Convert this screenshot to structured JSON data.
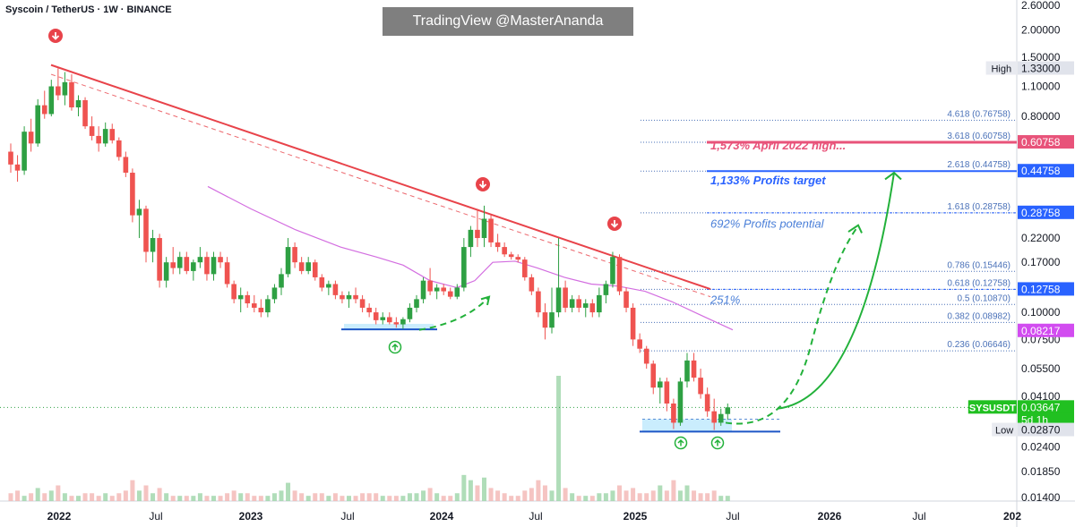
{
  "header": {
    "title": "Syscoin / TetherUS · 1W · BINANCE"
  },
  "watermark": "TradingView @MasterAnanda",
  "colors": {
    "up": "#2ea043",
    "down": "#ef5350",
    "trend": "#e8434a",
    "sma": "#d36ee0",
    "fib_line": "#4a71b8",
    "label_blue": "#2962ff",
    "label_pink": "#e8537a",
    "label_magenta": "#d24cf0",
    "label_green": "#21c021",
    "support": "#1d56c6",
    "projection": "#22b13a"
  },
  "chart_data": {
    "type": "candlestick",
    "title": "Syscoin / TetherUS · 1W · BINANCE",
    "y_scale": "log",
    "ylim": [
      0.0135,
      2.75
    ],
    "x_ticks": [
      "2022",
      "Jul",
      "2023",
      "Jul",
      "2024",
      "Jul",
      "2025",
      "Jul",
      "2026",
      "Jul",
      "202"
    ],
    "y_ticks": [
      "2.60000",
      "2.00000",
      "1.50000",
      "1.10000",
      "0.80000",
      "0.22000",
      "0.17000",
      "0.10000",
      "0.07500",
      "0.05500",
      "0.04100",
      "0.02400",
      "0.01850",
      "0.01400"
    ],
    "price_labels": [
      {
        "text": "High",
        "value": "1.33000",
        "y": 1.33,
        "style": "plain"
      },
      {
        "text": "",
        "value": "0.60758",
        "y": 0.60758,
        "style": "pink"
      },
      {
        "text": "",
        "value": "0.44758",
        "y": 0.44758,
        "style": "blue"
      },
      {
        "text": "",
        "value": "0.28758",
        "y": 0.28758,
        "style": "blue"
      },
      {
        "text": "",
        "value": "0.12758",
        "y": 0.12758,
        "style": "blue"
      },
      {
        "text": "",
        "value": "0.08217",
        "y": 0.08217,
        "style": "magenta"
      },
      {
        "text": "SYSUSDT",
        "value": "0.03647",
        "y": 0.03647,
        "style": "green"
      },
      {
        "text": "",
        "value": "5d 1h",
        "y": 0.0332,
        "style": "green-sub"
      },
      {
        "text": "Low",
        "value": "0.02870",
        "y": 0.0287,
        "style": "plain"
      }
    ],
    "fib_levels": [
      {
        "label": "4.618 (0.76758)",
        "y": 0.76758
      },
      {
        "label": "3.618 (0.60758)",
        "y": 0.60758
      },
      {
        "label": "2.618 (0.44758)",
        "y": 0.44758
      },
      {
        "label": "1.618 (0.28758)",
        "y": 0.28758
      },
      {
        "label": "0.786 (0.15446)",
        "y": 0.15446
      },
      {
        "label": "0.618 (0.12758)",
        "y": 0.12758
      },
      {
        "label": "0.5 (0.10870)",
        "y": 0.1087
      },
      {
        "label": "0.382 (0.08982)",
        "y": 0.08982
      },
      {
        "label": "0.236 (0.06646)",
        "y": 0.06646
      }
    ],
    "annotations": [
      {
        "text": "1,573% April 2022 high...",
        "y": 0.585,
        "color": "pink"
      },
      {
        "text": "1,133% Profits target",
        "y": 0.405,
        "color": "blue"
      },
      {
        "text": "692% Profits potential",
        "y": 0.255,
        "color": "lightblue"
      },
      {
        "text": "251%",
        "y": 0.114,
        "color": "lightblue"
      }
    ],
    "candles": [
      [
        0.55,
        0.6,
        0.44,
        0.48
      ],
      [
        0.48,
        0.53,
        0.4,
        0.45
      ],
      [
        0.45,
        0.72,
        0.43,
        0.68
      ],
      [
        0.68,
        0.78,
        0.55,
        0.6
      ],
      [
        0.6,
        0.96,
        0.58,
        0.9
      ],
      [
        0.9,
        1.05,
        0.78,
        0.82
      ],
      [
        0.82,
        1.18,
        0.8,
        1.1
      ],
      [
        1.1,
        1.33,
        0.95,
        1.0
      ],
      [
        1.0,
        1.28,
        0.9,
        1.15
      ],
      [
        1.15,
        1.25,
        0.85,
        0.88
      ],
      [
        0.88,
        1.0,
        0.8,
        0.95
      ],
      [
        0.95,
        0.98,
        0.7,
        0.72
      ],
      [
        0.72,
        0.8,
        0.62,
        0.65
      ],
      [
        0.65,
        0.72,
        0.55,
        0.6
      ],
      [
        0.6,
        0.75,
        0.58,
        0.7
      ],
      [
        0.7,
        0.74,
        0.6,
        0.62
      ],
      [
        0.62,
        0.64,
        0.5,
        0.52
      ],
      [
        0.52,
        0.55,
        0.42,
        0.44
      ],
      [
        0.44,
        0.46,
        0.26,
        0.28
      ],
      [
        0.28,
        0.33,
        0.22,
        0.3
      ],
      [
        0.3,
        0.31,
        0.17,
        0.19
      ],
      [
        0.19,
        0.24,
        0.17,
        0.22
      ],
      [
        0.22,
        0.23,
        0.13,
        0.14
      ],
      [
        0.14,
        0.18,
        0.13,
        0.17
      ],
      [
        0.17,
        0.2,
        0.15,
        0.16
      ],
      [
        0.16,
        0.19,
        0.15,
        0.18
      ],
      [
        0.18,
        0.19,
        0.15,
        0.155
      ],
      [
        0.155,
        0.175,
        0.14,
        0.17
      ],
      [
        0.17,
        0.2,
        0.16,
        0.18
      ],
      [
        0.18,
        0.19,
        0.14,
        0.15
      ],
      [
        0.15,
        0.19,
        0.14,
        0.18
      ],
      [
        0.18,
        0.19,
        0.16,
        0.17
      ],
      [
        0.17,
        0.18,
        0.13,
        0.135
      ],
      [
        0.135,
        0.14,
        0.11,
        0.115
      ],
      [
        0.115,
        0.13,
        0.1,
        0.12
      ],
      [
        0.12,
        0.125,
        0.105,
        0.11
      ],
      [
        0.11,
        0.12,
        0.1,
        0.105
      ],
      [
        0.105,
        0.115,
        0.095,
        0.1
      ],
      [
        0.1,
        0.12,
        0.095,
        0.115
      ],
      [
        0.115,
        0.135,
        0.11,
        0.13
      ],
      [
        0.13,
        0.16,
        0.12,
        0.15
      ],
      [
        0.15,
        0.22,
        0.145,
        0.2
      ],
      [
        0.2,
        0.21,
        0.16,
        0.17
      ],
      [
        0.17,
        0.18,
        0.15,
        0.155
      ],
      [
        0.155,
        0.18,
        0.15,
        0.17
      ],
      [
        0.17,
        0.175,
        0.14,
        0.145
      ],
      [
        0.145,
        0.15,
        0.125,
        0.13
      ],
      [
        0.13,
        0.14,
        0.12,
        0.135
      ],
      [
        0.135,
        0.14,
        0.115,
        0.12
      ],
      [
        0.12,
        0.125,
        0.11,
        0.115
      ],
      [
        0.115,
        0.125,
        0.105,
        0.12
      ],
      [
        0.12,
        0.13,
        0.11,
        0.115
      ],
      [
        0.115,
        0.12,
        0.1,
        0.105
      ],
      [
        0.105,
        0.11,
        0.095,
        0.1
      ],
      [
        0.1,
        0.105,
        0.088,
        0.092
      ],
      [
        0.092,
        0.1,
        0.088,
        0.095
      ],
      [
        0.095,
        0.1,
        0.088,
        0.09
      ],
      [
        0.09,
        0.095,
        0.085,
        0.088
      ],
      [
        0.088,
        0.095,
        0.084,
        0.093
      ],
      [
        0.093,
        0.11,
        0.09,
        0.105
      ],
      [
        0.105,
        0.12,
        0.1,
        0.115
      ],
      [
        0.115,
        0.145,
        0.11,
        0.14
      ],
      [
        0.14,
        0.16,
        0.12,
        0.125
      ],
      [
        0.125,
        0.135,
        0.115,
        0.13
      ],
      [
        0.13,
        0.135,
        0.12,
        0.125
      ],
      [
        0.125,
        0.13,
        0.115,
        0.118
      ],
      [
        0.118,
        0.135,
        0.115,
        0.13
      ],
      [
        0.13,
        0.22,
        0.125,
        0.2
      ],
      [
        0.2,
        0.25,
        0.18,
        0.24
      ],
      [
        0.24,
        0.3,
        0.2,
        0.22
      ],
      [
        0.22,
        0.31,
        0.2,
        0.27
      ],
      [
        0.27,
        0.28,
        0.2,
        0.21
      ],
      [
        0.21,
        0.23,
        0.19,
        0.2
      ],
      [
        0.2,
        0.21,
        0.18,
        0.185
      ],
      [
        0.185,
        0.19,
        0.175,
        0.18
      ],
      [
        0.18,
        0.185,
        0.17,
        0.175
      ],
      [
        0.175,
        0.18,
        0.14,
        0.145
      ],
      [
        0.145,
        0.15,
        0.12,
        0.125
      ],
      [
        0.125,
        0.13,
        0.095,
        0.1
      ],
      [
        0.1,
        0.11,
        0.075,
        0.085
      ],
      [
        0.085,
        0.13,
        0.08,
        0.1
      ],
      [
        0.1,
        0.22,
        0.095,
        0.13
      ],
      [
        0.13,
        0.14,
        0.1,
        0.105
      ],
      [
        0.105,
        0.12,
        0.1,
        0.115
      ],
      [
        0.115,
        0.12,
        0.1,
        0.105
      ],
      [
        0.105,
        0.115,
        0.095,
        0.11
      ],
      [
        0.11,
        0.115,
        0.095,
        0.1
      ],
      [
        0.1,
        0.13,
        0.095,
        0.12
      ],
      [
        0.12,
        0.14,
        0.11,
        0.135
      ],
      [
        0.135,
        0.19,
        0.13,
        0.18
      ],
      [
        0.18,
        0.185,
        0.12,
        0.125
      ],
      [
        0.125,
        0.13,
        0.1,
        0.105
      ],
      [
        0.105,
        0.11,
        0.07,
        0.075
      ],
      [
        0.075,
        0.08,
        0.065,
        0.068
      ],
      [
        0.068,
        0.07,
        0.055,
        0.058
      ],
      [
        0.058,
        0.06,
        0.042,
        0.045
      ],
      [
        0.045,
        0.05,
        0.038,
        0.048
      ],
      [
        0.048,
        0.05,
        0.035,
        0.038
      ],
      [
        0.038,
        0.04,
        0.029,
        0.031
      ],
      [
        0.031,
        0.05,
        0.03,
        0.048
      ],
      [
        0.048,
        0.065,
        0.045,
        0.06
      ],
      [
        0.06,
        0.065,
        0.048,
        0.05
      ],
      [
        0.05,
        0.055,
        0.04,
        0.042
      ],
      [
        0.042,
        0.045,
        0.033,
        0.035
      ],
      [
        0.035,
        0.04,
        0.0287,
        0.031
      ],
      [
        0.031,
        0.036,
        0.03,
        0.034
      ],
      [
        0.034,
        0.038,
        0.032,
        0.0365
      ]
    ],
    "volume": [
      3,
      4,
      2,
      3,
      5,
      3,
      4,
      6,
      3,
      2,
      2,
      3,
      3,
      2,
      3,
      2,
      3,
      4,
      8,
      4,
      6,
      3,
      5,
      3,
      2,
      2,
      2,
      2,
      3,
      2,
      2,
      2,
      3,
      4,
      3,
      3,
      2,
      2,
      2,
      3,
      4,
      7,
      4,
      3,
      2,
      3,
      3,
      2,
      3,
      2,
      2,
      2,
      3,
      3,
      3,
      2,
      2,
      2,
      2,
      3,
      3,
      4,
      5,
      3,
      2,
      2,
      3,
      10,
      8,
      6,
      9,
      5,
      4,
      3,
      2,
      2,
      4,
      5,
      8,
      6,
      4,
      48,
      5,
      3,
      2,
      2,
      2,
      3,
      3,
      4,
      6,
      4,
      5,
      3,
      3,
      4,
      6,
      4,
      8,
      4,
      6,
      4,
      3,
      3,
      4,
      2,
      2
    ]
  }
}
